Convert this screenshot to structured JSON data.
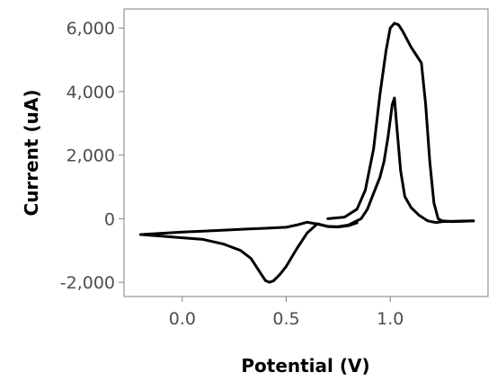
{
  "chart_data": {
    "type": "line",
    "xlabel": "Potential (V)",
    "ylabel": "Current (uA)",
    "xlim": [
      -0.28,
      1.47
    ],
    "ylim": [
      -2450,
      6600
    ],
    "x_ticks": [
      0.0,
      0.5,
      1.0
    ],
    "x_tick_labels": [
      "0.0",
      "0.5",
      "1.0"
    ],
    "y_ticks": [
      -2000,
      0,
      2000,
      4000,
      6000
    ],
    "y_tick_labels": [
      "-2,000",
      "0",
      "2,000",
      "4,000",
      "6,000"
    ],
    "grid": false,
    "legend": "none",
    "line_color": "#000000",
    "frame_color": "#808080",
    "series": [
      {
        "x": [
          0.7,
          0.78,
          0.84,
          0.88,
          0.92,
          0.95,
          0.98,
          1.0,
          1.02,
          1.04,
          1.06,
          1.08,
          1.1,
          1.12,
          1.15,
          1.17,
          1.19,
          1.21,
          1.23,
          1.25,
          1.3,
          1.35,
          1.4
        ],
        "y": [
          0,
          50,
          300,
          900,
          2200,
          3900,
          5300,
          6000,
          6150,
          6100,
          5900,
          5650,
          5400,
          5200,
          4900,
          3600,
          1800,
          500,
          0,
          -70,
          -90,
          -80,
          -70
        ]
      },
      {
        "x": [
          1.4,
          1.3,
          1.25,
          1.22,
          1.18,
          1.14,
          1.1,
          1.07,
          1.05,
          1.03,
          1.02,
          1.01,
          0.99,
          0.97,
          0.95,
          0.92,
          0.89,
          0.86,
          0.8,
          0.75,
          0.7,
          0.65,
          0.6,
          0.55,
          0.5,
          0.47,
          0.44,
          0.42,
          0.4,
          0.37,
          0.33,
          0.28,
          0.2,
          0.1,
          0.0,
          -0.1,
          -0.2
        ],
        "y": [
          -70,
          -80,
          -90,
          -120,
          -70,
          100,
          350,
          700,
          1500,
          3000,
          3800,
          3600,
          2600,
          1800,
          1300,
          800,
          300,
          0,
          -200,
          -250,
          -250,
          -160,
          -450,
          -950,
          -1500,
          -1750,
          -1950,
          -2000,
          -1950,
          -1650,
          -1250,
          -1000,
          -800,
          -650,
          -600,
          -550,
          -500
        ]
      },
      {
        "x": [
          -0.2,
          -0.1,
          0.0,
          0.1,
          0.2,
          0.3,
          0.4,
          0.5,
          0.55,
          0.6,
          0.65,
          0.7,
          0.75,
          0.8,
          0.84
        ],
        "y": [
          -500,
          -460,
          -420,
          -390,
          -360,
          -330,
          -300,
          -270,
          -200,
          -110,
          -170,
          -240,
          -260,
          -220,
          -130
        ]
      }
    ]
  }
}
